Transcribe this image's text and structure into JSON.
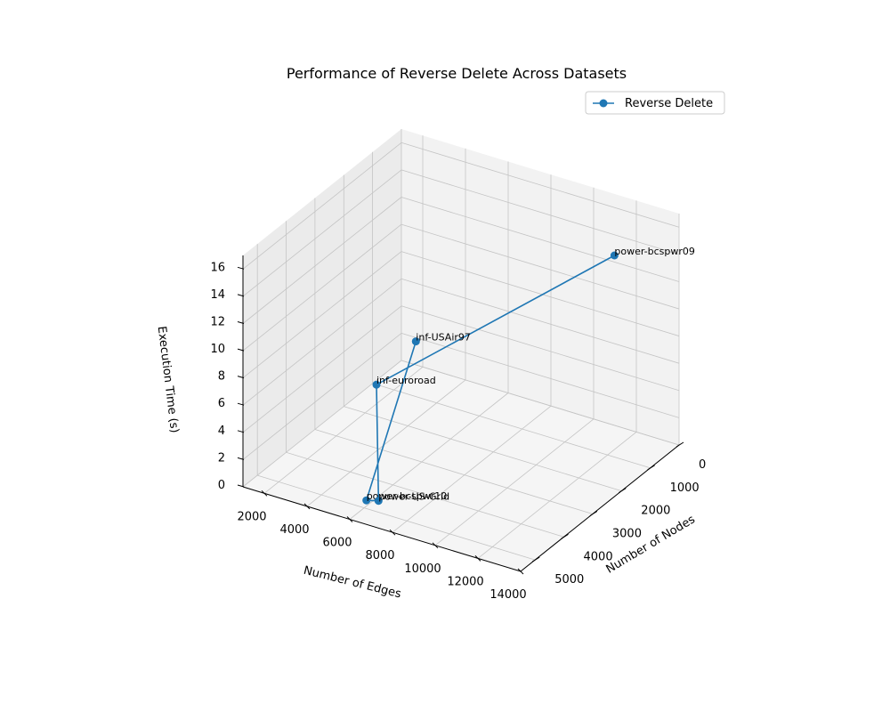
{
  "chart_data": {
    "type": "line3d",
    "title": "Performance of Reverse Delete Across Datasets",
    "xlabel": "Number of Edges",
    "ylabel": "Number of Nodes",
    "zlabel": "Execution Time (s)",
    "xlim": [
      1000,
      14000
    ],
    "ylim": [
      0,
      5500
    ],
    "zlim": [
      0,
      17
    ],
    "x_ticks": [
      2000,
      4000,
      6000,
      8000,
      10000,
      12000,
      14000
    ],
    "y_ticks": [
      0,
      1000,
      2000,
      3000,
      4000,
      5000
    ],
    "z_ticks": [
      0,
      2,
      4,
      6,
      8,
      10,
      12,
      14,
      16
    ],
    "grid": true,
    "legend_position": "top-right",
    "series": [
      {
        "name": "Reverse Delete",
        "color": "#1f77b4",
        "marker": "circle",
        "points": [
          {
            "label": "inf-USAir97",
            "x": 2126,
            "y": 332,
            "z": 2.5
          },
          {
            "label": "power-bcspwr10",
            "x": 6511,
            "y": 5300,
            "z": 1.3
          },
          {
            "label": "power-US-Grid",
            "x": 6594,
            "y": 4941,
            "z": 0.7
          },
          {
            "label": "inf-euroroad",
            "x": 1417,
            "y": 1174,
            "z": 0.4
          },
          {
            "label": "power-bcspwr09",
            "x": 13300,
            "y": 1723,
            "z": 16.5
          }
        ]
      }
    ]
  }
}
